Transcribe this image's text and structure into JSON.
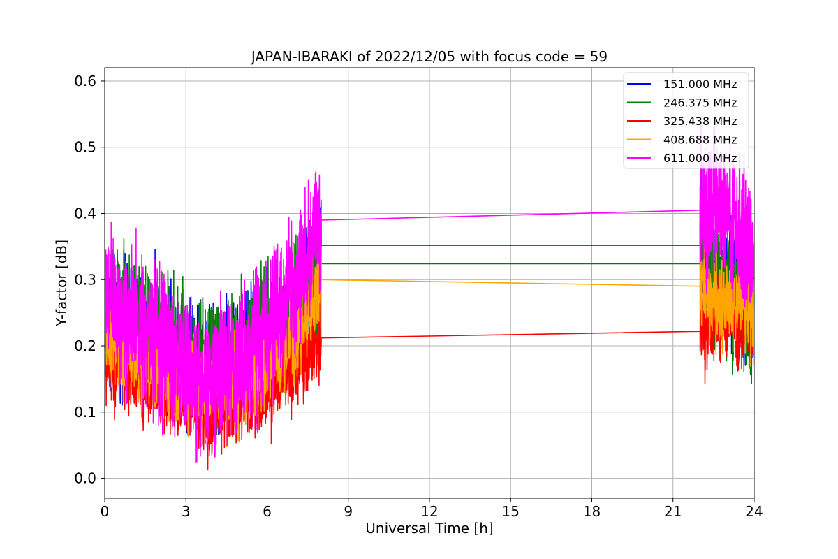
{
  "chart_data": {
    "type": "line",
    "title": "JAPAN-IBARAKI of 2022/12/05 with focus code = 59",
    "xlabel": "Universal Time [h]",
    "ylabel": "Y-factor [dB]",
    "xlim": [
      0,
      24
    ],
    "ylim": [
      -0.03,
      0.62
    ],
    "xticks": [
      0,
      3,
      6,
      9,
      12,
      15,
      18,
      21,
      24
    ],
    "yticks": [
      0.0,
      0.1,
      0.2,
      0.3,
      0.4,
      0.5,
      0.6
    ],
    "xtick_labels": [
      "0",
      "3",
      "6",
      "9",
      "12",
      "15",
      "18",
      "21",
      "24"
    ],
    "ytick_labels": [
      "0.0",
      "0.1",
      "0.2",
      "0.3",
      "0.4",
      "0.5",
      "0.6"
    ],
    "grid": true,
    "legend_position": "top-right",
    "series": [
      {
        "name": "151.000 MHz",
        "color": "#0000ff",
        "x": [
          0,
          1,
          2,
          3,
          3.8,
          5,
          6,
          7,
          8,
          22,
          22.5,
          23,
          23.5,
          24
        ],
        "y": [
          0.24,
          0.23,
          0.21,
          0.19,
          0.16,
          0.18,
          0.21,
          0.24,
          0.352,
          0.352,
          0.3,
          0.29,
          0.29,
          0.25
        ],
        "noise": 0.07
      },
      {
        "name": "246.375 MHz",
        "color": "#008000",
        "x": [
          0,
          1,
          2,
          3,
          3.8,
          5,
          6,
          7,
          8,
          22,
          22.5,
          23,
          23.5,
          24
        ],
        "y": [
          0.25,
          0.24,
          0.22,
          0.19,
          0.16,
          0.19,
          0.22,
          0.25,
          0.324,
          0.324,
          0.29,
          0.28,
          0.28,
          0.25
        ],
        "noise": 0.07
      },
      {
        "name": "325.438 MHz",
        "color": "#ff0000",
        "x": [
          0,
          1,
          2,
          3,
          3.8,
          5,
          6,
          7,
          8,
          22,
          22.5,
          23,
          23.5,
          24
        ],
        "y": [
          0.18,
          0.16,
          0.14,
          0.12,
          0.1,
          0.12,
          0.14,
          0.16,
          0.212,
          0.222,
          0.25,
          0.24,
          0.24,
          0.22
        ],
        "noise": 0.05
      },
      {
        "name": "408.688 MHz",
        "color": "#ffa500",
        "x": [
          0,
          1,
          2,
          3,
          3.8,
          5,
          6,
          7,
          8,
          22,
          22.5,
          23,
          23.5,
          24
        ],
        "y": [
          0.21,
          0.19,
          0.17,
          0.15,
          0.13,
          0.15,
          0.18,
          0.21,
          0.3,
          0.29,
          0.27,
          0.26,
          0.27,
          0.24
        ],
        "noise": 0.05
      },
      {
        "name": "611.000 MHz",
        "color": "#ff00ff",
        "x": [
          0,
          1,
          2,
          3,
          3.8,
          5,
          6,
          7,
          8,
          22,
          22.5,
          23,
          23.5,
          24
        ],
        "y": [
          0.26,
          0.24,
          0.21,
          0.17,
          0.14,
          0.18,
          0.23,
          0.28,
          0.39,
          0.405,
          0.41,
          0.4,
          0.37,
          0.32
        ],
        "noise": 0.08
      }
    ]
  }
}
